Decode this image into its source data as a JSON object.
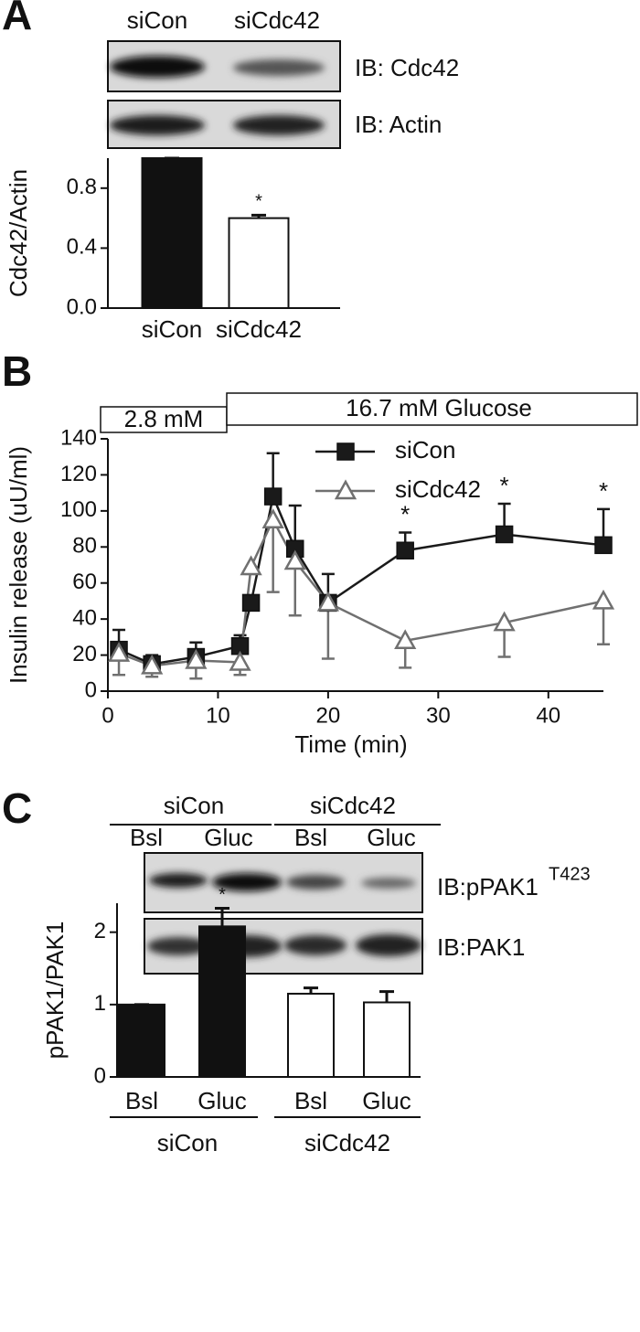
{
  "chart_data": [
    {
      "type": "bar",
      "panel": "A",
      "blots": {
        "lanes": [
          "siCon",
          "siCdc42"
        ],
        "labels": [
          "IB: Cdc42",
          "IB: Actin"
        ]
      },
      "ylabel": "Cdc42/Actin",
      "categories": [
        "siCon",
        "siCdc42"
      ],
      "values": [
        1.0,
        0.6
      ],
      "errors": [
        0,
        0.02
      ],
      "colors": [
        "#111111",
        "#ffffff"
      ],
      "significance": [
        null,
        "*"
      ],
      "ylim": [
        0,
        1.0
      ],
      "yticks": [
        {
          "value": 0,
          "label": "0.0"
        },
        0.4,
        0.8
      ]
    },
    {
      "type": "line",
      "panel": "B",
      "conditions": [
        "2.8 mM",
        "16.7 mM Glucose"
      ],
      "xlabel": "Time (min)",
      "ylabel": "Insulin release (uU/ml)",
      "xlim": [
        0,
        45
      ],
      "xticks": [
        0,
        10,
        20,
        30,
        40
      ],
      "ylim": [
        0,
        140
      ],
      "yticks": [
        0,
        20,
        40,
        60,
        80,
        100,
        120,
        140
      ],
      "series": [
        {
          "name": "siCon",
          "color": "#1a1a1a",
          "marker": "square",
          "error_direction": "up",
          "x": [
            1,
            4,
            8,
            12,
            13,
            15,
            17,
            20,
            27,
            36,
            45
          ],
          "values": [
            23,
            15,
            19,
            25,
            49,
            108,
            79,
            49,
            78,
            87,
            81
          ],
          "errors": [
            11,
            5,
            8,
            6,
            4,
            24,
            24,
            16,
            10,
            17,
            20
          ],
          "significance": [
            null,
            null,
            null,
            null,
            null,
            null,
            null,
            null,
            "*",
            "*",
            "*"
          ]
        },
        {
          "name": "siCdc42",
          "color": "#707070",
          "marker": "triangle",
          "error_direction": "down",
          "x": [
            1,
            4,
            8,
            12,
            13,
            15,
            17,
            20,
            27,
            36,
            45
          ],
          "values": [
            21,
            14,
            17,
            16,
            69,
            95,
            72,
            49,
            28,
            38,
            50
          ],
          "errors": [
            12,
            6,
            10,
            7,
            4,
            40,
            30,
            31,
            15,
            19,
            24
          ]
        }
      ]
    },
    {
      "type": "bar",
      "panel": "C",
      "blots": {
        "groups": [
          "siCon",
          "siCdc42"
        ],
        "lanes": [
          "Bsl",
          "Gluc",
          "Bsl",
          "Gluc"
        ],
        "labels": [
          "IB:pPAK1",
          "IB:PAK1"
        ],
        "label_superscript": "T423"
      },
      "ylabel": "pPAK1/PAK1",
      "categories": [
        "Bsl",
        "Gluc",
        "Bsl",
        "Gluc"
      ],
      "groups": [
        "siCon",
        "siCdc42"
      ],
      "values": [
        1.0,
        2.08,
        1.15,
        1.03
      ],
      "errors": [
        0,
        0.25,
        0.08,
        0.15
      ],
      "colors": [
        "#111111",
        "#111111",
        "#ffffff",
        "#ffffff"
      ],
      "significance": [
        null,
        "*",
        null,
        null
      ],
      "ylim": [
        0,
        2.4
      ],
      "yticks": [
        0,
        1,
        2
      ]
    }
  ]
}
